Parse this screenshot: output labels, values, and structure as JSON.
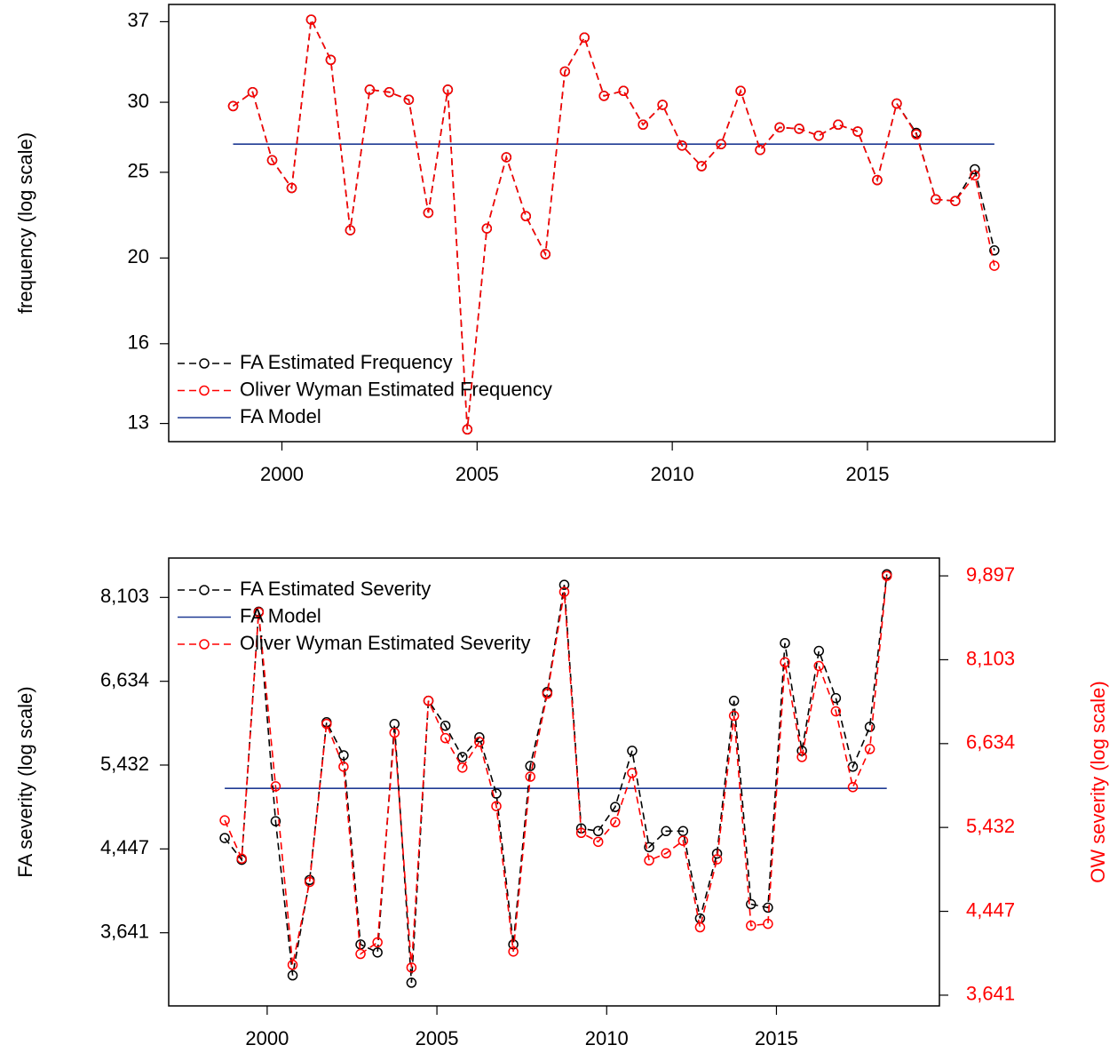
{
  "chart_data": [
    {
      "type": "line",
      "ylabel": "frequency (log scale)",
      "log_scale": true,
      "legend": "bottomleft",
      "xlim": [
        1997.1,
        2019.8
      ],
      "xticks": [
        2000,
        2005,
        2010,
        2015
      ],
      "ylim": [
        12.4,
        38.7
      ],
      "yticks": [
        13,
        16,
        20,
        25,
        30,
        37
      ],
      "x": [
        1998.75,
        1999.25,
        1999.75,
        2000.25,
        2000.75,
        2001.25,
        2001.75,
        2002.25,
        2002.75,
        2003.25,
        2003.75,
        2004.25,
        2004.75,
        2005.25,
        2005.75,
        2006.25,
        2006.75,
        2007.25,
        2007.75,
        2008.25,
        2008.75,
        2009.25,
        2009.75,
        2010.25,
        2010.75,
        2011.25,
        2011.75,
        2012.25,
        2012.75,
        2013.25,
        2013.75,
        2014.25,
        2014.75,
        2015.25,
        2015.75,
        2016.25,
        2016.75,
        2017.25,
        2017.75,
        2018.25
      ],
      "series": [
        {
          "name": "FA Estimated Frequency",
          "color": "#000000",
          "style": "dashed",
          "marker": "circle",
          "values": [
            29.7,
            30.8,
            25.8,
            24.0,
            37.2,
            33.5,
            21.5,
            31.0,
            30.8,
            30.2,
            22.5,
            31.0,
            12.8,
            21.6,
            26.0,
            22.3,
            20.2,
            32.5,
            35.5,
            30.5,
            30.9,
            28.3,
            29.8,
            26.8,
            25.4,
            26.9,
            30.9,
            26.5,
            28.1,
            28.0,
            27.5,
            28.3,
            27.8,
            24.5,
            29.9,
            27.7,
            23.3,
            23.2,
            25.2,
            20.4
          ]
        },
        {
          "name": "Oliver Wyman Estimated Frequency",
          "color": "#ff0000",
          "style": "dashed",
          "marker": "circle",
          "values": [
            29.7,
            30.8,
            25.8,
            24.0,
            37.2,
            33.5,
            21.5,
            31.0,
            30.8,
            30.2,
            22.5,
            31.0,
            12.8,
            21.6,
            26.0,
            22.3,
            20.2,
            32.5,
            35.5,
            30.5,
            30.9,
            28.3,
            29.8,
            26.8,
            25.4,
            26.9,
            30.9,
            26.5,
            28.1,
            28.0,
            27.5,
            28.3,
            27.8,
            24.5,
            29.9,
            27.6,
            23.3,
            23.2,
            24.8,
            19.6
          ]
        },
        {
          "name": "FA Model",
          "color": "#1f3a93",
          "style": "solid",
          "x": [
            1998.75,
            2018.25
          ],
          "values": [
            26.9,
            26.9
          ]
        }
      ]
    },
    {
      "type": "line",
      "ylabel": "FA severity (log scale)",
      "y2label": "OW severity (log scale)",
      "y2color": "#ff0000",
      "log_scale": true,
      "legend": "topleft",
      "xlim": [
        1997.1,
        2019.8
      ],
      "xticks": [
        2000,
        2005,
        2010,
        2015
      ],
      "ylim": [
        3058,
        8901
      ],
      "yticks": [
        {
          "value": 3641,
          "label": "3,641"
        },
        {
          "value": 4447,
          "label": "4,447"
        },
        {
          "value": 5432,
          "label": "5,432"
        },
        {
          "value": 6634,
          "label": "6,634"
        },
        {
          "value": 8103,
          "label": "8,103"
        }
      ],
      "y2lim": [
        3549,
        10327
      ],
      "y2ticks": [
        {
          "value": 3641,
          "label": "3,641"
        },
        {
          "value": 4447,
          "label": "4,447"
        },
        {
          "value": 5432,
          "label": "5,432"
        },
        {
          "value": 6634,
          "label": "6,634"
        },
        {
          "value": 8103,
          "label": "8,103"
        },
        {
          "value": 9897,
          "label": "9,897"
        }
      ],
      "x": [
        1998.75,
        1999.25,
        1999.75,
        2000.25,
        2000.75,
        2001.25,
        2001.75,
        2002.25,
        2002.75,
        2003.25,
        2003.75,
        2004.25,
        2004.75,
        2005.25,
        2005.75,
        2006.25,
        2006.75,
        2007.25,
        2007.75,
        2008.25,
        2008.75,
        2009.25,
        2009.75,
        2010.25,
        2010.75,
        2011.25,
        2011.75,
        2012.25,
        2012.75,
        2013.25,
        2013.75,
        2014.25,
        2014.75,
        2015.25,
        2015.75,
        2016.25,
        2016.75,
        2017.25,
        2017.75,
        2018.25
      ],
      "series": [
        {
          "name": "FA Estimated Severity",
          "color": "#000000",
          "style": "dashed",
          "marker": "circle",
          "values": [
            4564,
            4333,
            7832,
            4751,
            3289,
            4129,
            6016,
            5560,
            3541,
            3474,
            5991,
            3232,
            6332,
            5966,
            5537,
            5803,
            5075,
            3541,
            5420,
            6467,
            8350,
            4670,
            4640,
            4915,
            5620,
            4466,
            4640,
            4640,
            3768,
            4398,
            6332,
            3898,
            3866,
            7266,
            5620,
            7132,
            6372,
            5411,
            5950,
            8563
          ]
        },
        {
          "name": "FA Model",
          "color": "#1f3a93",
          "style": "solid",
          "x": [
            1998.75,
            2018.25
          ],
          "values": [
            5138,
            5138
          ]
        },
        {
          "name": "Oliver Wyman Estimated Severity",
          "color": "#ff0000",
          "style": "dashed",
          "marker": "circle",
          "axis": "y2",
          "values": [
            5525,
            5043,
            9073,
            5991,
            3914,
            4770,
            6954,
            6278,
            4017,
            4130,
            6808,
            3889,
            7348,
            6721,
            6265,
            6662,
            5715,
            4040,
            6131,
            7473,
            9526,
            5362,
            5249,
            5500,
            6185,
            5021,
            5107,
            5262,
            4281,
            5034,
            7089,
            4298,
            4316,
            8054,
            6425,
            7983,
            7164,
            5980,
            6549,
            9897
          ]
        }
      ]
    }
  ]
}
